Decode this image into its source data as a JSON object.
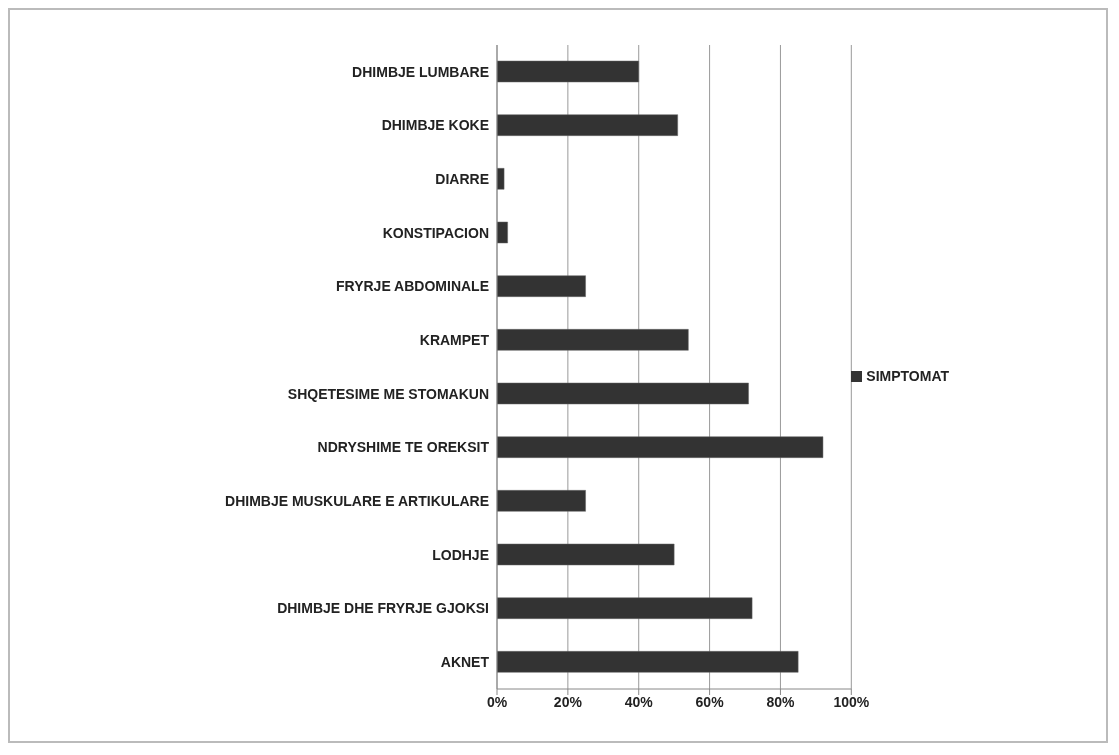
{
  "chart_data": {
    "type": "bar",
    "orientation": "horizontal",
    "categories": [
      "DHIMBJE LUMBARE",
      "DHIMBJE KOKE",
      "DIARRE",
      "KONSTIPACION",
      "FRYRJE ABDOMINALE",
      "KRAMPET",
      "SHQETESIME ME STOMAKUN",
      "NDRYSHIME TE OREKSIT",
      "DHIMBJE MUSKULARE E ARTIKULARE",
      "LODHJE",
      "DHIMBJE DHE FRYRJE GJOKSI",
      "AKNET"
    ],
    "series": [
      {
        "name": "SIMPTOMAT",
        "color": "#333333",
        "values": [
          40,
          51,
          2,
          3,
          25,
          54,
          71,
          92,
          25,
          50,
          72,
          85
        ]
      }
    ],
    "xlim": [
      0,
      100
    ],
    "xticks": [
      {
        "value": 0,
        "label": "0%"
      },
      {
        "value": 20,
        "label": "20%"
      },
      {
        "value": 40,
        "label": "40%"
      },
      {
        "value": 60,
        "label": "60%"
      },
      {
        "value": 80,
        "label": "80%"
      },
      {
        "value": 100,
        "label": "100%"
      }
    ],
    "grid": "x",
    "legend": "right"
  }
}
